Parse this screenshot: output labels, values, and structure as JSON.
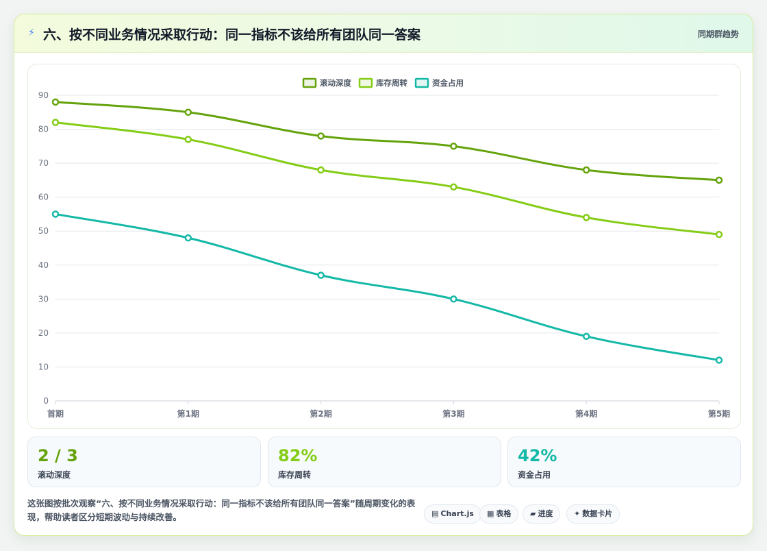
{
  "header": {
    "icon": "lightning-bolt-icon",
    "title": "六、按不同业务情况采取行动：同一指标不该给所有团队同一答案",
    "tag": "同期群趋势"
  },
  "chart_data": {
    "type": "line",
    "categories": [
      "首期",
      "第1期",
      "第2期",
      "第3期",
      "第4期",
      "第5期"
    ],
    "series": [
      {
        "name": "滚动深度",
        "color": "#65a30d",
        "values": [
          88,
          85,
          78,
          75,
          68,
          65
        ]
      },
      {
        "name": "库存周转",
        "color": "#84cc16",
        "values": [
          82,
          77,
          68,
          63,
          54,
          49
        ]
      },
      {
        "name": "资金占用",
        "color": "#14b8a6",
        "values": [
          55,
          48,
          37,
          30,
          19,
          12
        ]
      }
    ],
    "ylim": [
      0,
      90
    ],
    "yticks": [
      0,
      10,
      20,
      30,
      40,
      50,
      60,
      70,
      80,
      90
    ],
    "legend": "top",
    "grid": true,
    "curve": "smooth"
  },
  "stats": [
    {
      "value": "2 / 3",
      "label": "滚动深度",
      "color": "#65a30d"
    },
    {
      "value": "82%",
      "label": "库存周转",
      "color": "#84cc16"
    },
    {
      "value": "42%",
      "label": "资金占用",
      "color": "#14b8a6"
    }
  ],
  "footer": {
    "text": "这张图按批次观察“六、按不同业务情况采取行动：同一指标不该给所有团队同一答案”随周期变化的表现，帮助读者区分短期波动与持续改善。",
    "pills": [
      {
        "icon": "▤",
        "label": "Chart.js"
      },
      {
        "icon": "▦",
        "label": "表格"
      },
      {
        "icon": "▰",
        "label": "进度"
      },
      {
        "icon": "✦",
        "label": "数据卡片"
      }
    ]
  }
}
